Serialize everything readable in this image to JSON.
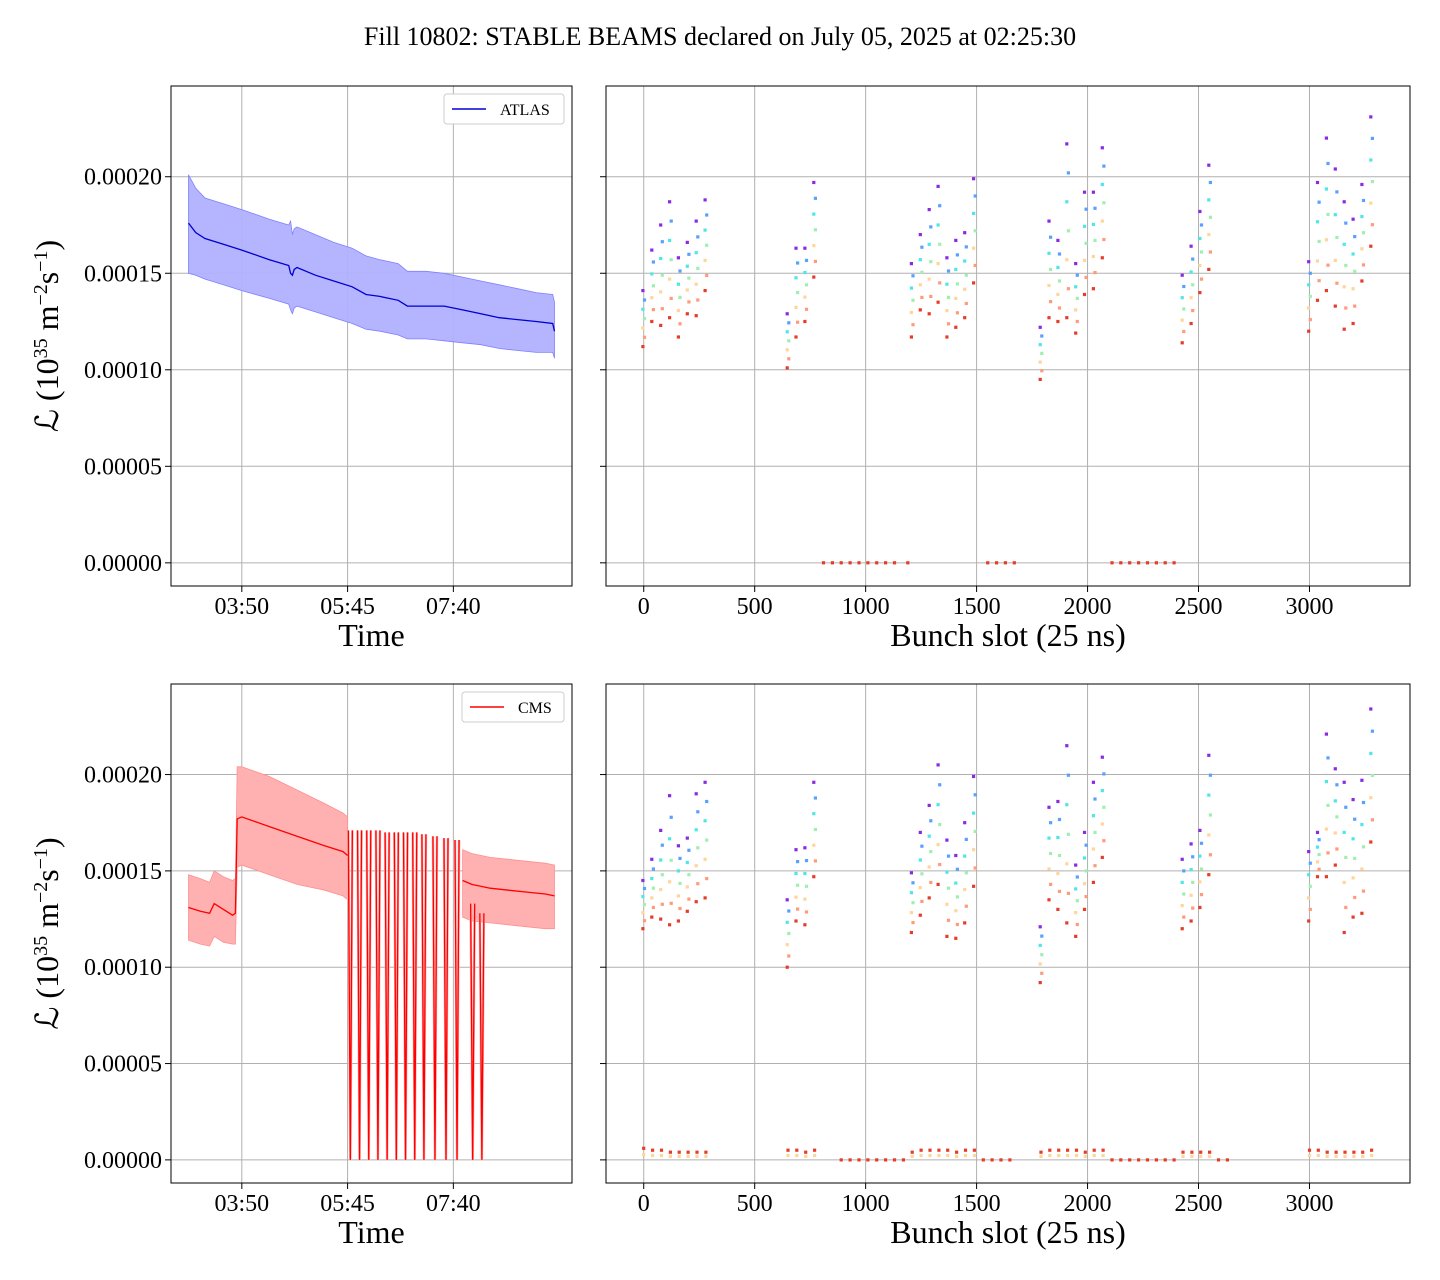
{
  "figure": {
    "title": "Fill 10802: STABLE BEAMS declared on July 05, 2025 at 02:25:30"
  },
  "colors": {
    "atlas_line": "#0000d0",
    "atlas_band": "#b0b0ff",
    "cms_line": "#ff0000",
    "cms_band": "#ffb0b0",
    "grid": "#b0b0b0",
    "axes": "#000000",
    "bunch_palette": [
      "#8a2be2",
      "#5aa0ff",
      "#4ee6e6",
      "#9ff0b0",
      "#ffd59a",
      "#ff9a7a",
      "#e63c2a"
    ]
  },
  "y_axis": {
    "label_main": "ℒ (10",
    "label_exp1": "35",
    "label_mid": " m",
    "label_exp2": "−2",
    "label_mid2": "s",
    "label_exp3": "−1",
    "label_end": ")",
    "ticks": [
      "0.00000",
      "0.00005",
      "0.00010",
      "0.00015",
      "0.00020"
    ],
    "tick_values": [
      0,
      5e-05,
      0.0001,
      0.00015,
      0.0002
    ],
    "ylim": [
      -1.2e-05,
      0.000247
    ]
  },
  "time_axis": {
    "label": "Time",
    "ticks": [
      "03:50",
      "05:45",
      "07:40"
    ],
    "tick_values": [
      230,
      345,
      460
    ],
    "xlim": [
      153,
      589
    ],
    "data_start": 172,
    "data_end": 570
  },
  "bunch_axis": {
    "label": "Bunch slot (25 ns)",
    "ticks": [
      "0",
      "500",
      "1000",
      "1500",
      "2000",
      "2500",
      "3000"
    ],
    "tick_values": [
      0,
      500,
      1000,
      1500,
      2000,
      2500,
      3000
    ],
    "xlim": [
      -170,
      3453
    ]
  },
  "chart_data": [
    {
      "type": "line",
      "panel": "atlas-time",
      "legend": "ATLAS",
      "legend_position": "top-right",
      "grid": true,
      "x_unit": "minutes",
      "series": [
        {
          "x": [
            172,
            180,
            190,
            210,
            230,
            260,
            281,
            283,
            285,
            287,
            290,
            310,
            330,
            350,
            365,
            380,
            400,
            410,
            430,
            450,
            470,
            490,
            510,
            530,
            550,
            568,
            570
          ],
          "y": [
            0.000176,
            0.000171,
            0.000168,
            0.000165,
            0.000162,
            0.000157,
            0.000154,
            0.00015,
            0.000149,
            0.000152,
            0.000153,
            0.000149,
            0.000146,
            0.000143,
            0.000139,
            0.000138,
            0.000136,
            0.000133,
            0.000133,
            0.000133,
            0.000131,
            0.000129,
            0.000127,
            0.000126,
            0.000125,
            0.000124,
            0.00012
          ],
          "band_upper": [
            0.000201,
            0.000194,
            0.000189,
            0.000186,
            0.000183,
            0.000178,
            0.000175,
            0.000177,
            0.00017,
            0.000173,
            0.000174,
            0.00017,
            0.000166,
            0.000163,
            0.000159,
            0.000157,
            0.000155,
            0.000151,
            0.000151,
            0.00015,
            0.000148,
            0.000146,
            0.000144,
            0.000142,
            0.00014,
            0.000139,
            0.000135
          ],
          "band_lower": [
            0.00015,
            0.000149,
            0.000147,
            0.000144,
            0.000141,
            0.000137,
            0.000134,
            0.000131,
            0.000129,
            0.000132,
            0.000133,
            0.00013,
            0.000127,
            0.000124,
            0.000121,
            0.00012,
            0.000118,
            0.000116,
            0.000116,
            0.000115,
            0.000114,
            0.000113,
            0.000111,
            0.00011,
            0.000109,
            0.000109,
            0.000106
          ]
        }
      ]
    },
    {
      "type": "scatter",
      "panel": "atlas-bunch",
      "grid": true,
      "trains": [
        0,
        40,
        80,
        120,
        160,
        200,
        240,
        280,
        650,
        690,
        730,
        770,
        1210,
        1250,
        1290,
        1330,
        1370,
        1410,
        1450,
        1490,
        1790,
        1830,
        1870,
        1910,
        1950,
        1990,
        2030,
        2070,
        2430,
        2470,
        2510,
        2550,
        3000,
        3040,
        3080,
        3120,
        3160,
        3200,
        3240,
        3280
      ],
      "train_top": [
        0.000141,
        0.000162,
        0.000175,
        0.000187,
        0.000158,
        0.000166,
        0.000177,
        0.000188,
        0.000129,
        0.000163,
        0.000163,
        0.000197,
        0.000155,
        0.00017,
        0.000183,
        0.000195,
        0.000158,
        0.000167,
        0.000171,
        0.000199,
        0.000122,
        0.000177,
        0.000167,
        0.000217,
        0.000155,
        0.000192,
        0.000192,
        0.000215,
        0.000149,
        0.000164,
        0.000182,
        0.000206,
        0.000156,
        0.000197,
        0.00022,
        0.000204,
        0.000187,
        0.000178,
        0.000196,
        0.000231
      ],
      "train_bottom": [
        0.000112,
        0.000125,
        0.000123,
        0.000127,
        0.000117,
        0.000129,
        0.000128,
        0.000141,
        0.000101,
        0.000117,
        0.000125,
        0.000148,
        0.000117,
        0.000131,
        0.000129,
        0.000135,
        0.000117,
        0.000122,
        0.000127,
        0.000145,
        9.5e-05,
        0.000127,
        0.000125,
        0.000127,
        0.000119,
        0.000139,
        0.000142,
        0.000158,
        0.000114,
        0.000124,
        0.00014,
        0.000152,
        0.00012,
        0.000136,
        0.000141,
        0.000133,
        0.000121,
        0.000124,
        0.000146,
        0.000164
      ],
      "zero_points": [
        810,
        850,
        890,
        930,
        970,
        1010,
        1050,
        1090,
        1130,
        1190,
        1550,
        1590,
        1630,
        1670,
        2110,
        2150,
        2190,
        2230,
        2270,
        2310,
        2350,
        2390
      ]
    },
    {
      "type": "line",
      "panel": "cms-time",
      "legend": "CMS",
      "legend_position": "top-right",
      "grid": true,
      "x_unit": "minutes",
      "series": [
        {
          "x": [
            172,
            185,
            195,
            200,
            210,
            220,
            223,
            225,
            230,
            260,
            290,
            320,
            340,
            345
          ],
          "y": [
            0.000131,
            0.000129,
            0.000128,
            0.000133,
            0.00013,
            0.000127,
            0.000128,
            0.000177,
            0.000178,
            0.000173,
            0.000168,
            0.000163,
            0.00016,
            0.000158
          ],
          "band_upper": [
            0.000148,
            0.000146,
            0.000144,
            0.00015,
            0.000147,
            0.000145,
            0.000146,
            0.000204,
            0.000204,
            0.000199,
            0.000192,
            0.000185,
            0.00018,
            0.000178
          ],
          "band_lower": [
            0.000114,
            0.000112,
            0.000111,
            0.000116,
            0.000113,
            0.000112,
            0.000112,
            0.000152,
            0.000153,
            0.000148,
            0.000143,
            0.00014,
            0.000137,
            0.000135
          ]
        },
        {
          "x": [
            470,
            480,
            500,
            520,
            540,
            560,
            570
          ],
          "y": [
            0.000145,
            0.000143,
            0.000141,
            0.00014,
            0.000139,
            0.000138,
            0.000137
          ],
          "band_upper": [
            0.000161,
            0.000159,
            0.000157,
            0.000156,
            0.000155,
            0.000154,
            0.000153
          ],
          "band_lower": [
            0.000126,
            0.000124,
            0.000123,
            0.000122,
            0.000121,
            0.00012,
            0.00012
          ]
        }
      ],
      "spikes": [
        348,
        358,
        368,
        378,
        388,
        398,
        408,
        418,
        428,
        440,
        452,
        464,
        481,
        491
      ],
      "spike_top": [
        0.000171,
        0.000171,
        0.000171,
        0.000171,
        0.00017,
        0.00017,
        0.00017,
        0.00017,
        0.000169,
        0.000168,
        0.000167,
        0.000166,
        0.000133,
        0.000128
      ]
    },
    {
      "type": "scatter",
      "panel": "cms-bunch",
      "grid": true,
      "trains": [
        0,
        40,
        80,
        120,
        160,
        200,
        240,
        280,
        650,
        690,
        730,
        770,
        1210,
        1250,
        1290,
        1330,
        1370,
        1410,
        1450,
        1490,
        1790,
        1830,
        1870,
        1910,
        1950,
        1990,
        2030,
        2070,
        2430,
        2470,
        2510,
        2550,
        3000,
        3040,
        3080,
        3120,
        3160,
        3200,
        3240,
        3280
      ],
      "train_top": [
        0.000145,
        0.000156,
        0.000171,
        0.000189,
        0.000163,
        0.000167,
        0.00019,
        0.000196,
        0.000135,
        0.000161,
        0.000162,
        0.000196,
        0.000149,
        0.00017,
        0.000184,
        0.000205,
        0.000166,
        0.000158,
        0.000175,
        0.000199,
        0.000121,
        0.000183,
        0.000186,
        0.000215,
        0.000153,
        0.00017,
        0.000196,
        0.000209,
        0.000156,
        0.000164,
        0.000171,
        0.00021,
        0.00016,
        0.00017,
        0.000221,
        0.000203,
        0.000196,
        0.000187,
        0.000197,
        0.000234
      ],
      "train_bottom": [
        0.00012,
        0.000126,
        0.000125,
        0.000122,
        0.000124,
        0.000129,
        0.000134,
        0.000136,
        0.0001,
        0.000124,
        0.000122,
        0.000147,
        0.000118,
        0.000127,
        0.000136,
        0.000143,
        0.000116,
        0.000115,
        0.000123,
        0.000142,
        9.2e-05,
        0.000135,
        0.00013,
        0.000123,
        0.000116,
        0.00013,
        0.000144,
        0.000157,
        0.00012,
        0.000124,
        0.000131,
        0.000148,
        0.000124,
        0.000147,
        0.000147,
        0.000153,
        0.000118,
        0.000126,
        0.000128,
        0.000165
      ],
      "zero_points": [
        890,
        930,
        970,
        1010,
        1050,
        1090,
        1130,
        1170,
        1530,
        1570,
        1610,
        1650,
        2110,
        2150,
        2190,
        2230,
        2270,
        2310,
        2350,
        2390,
        2590,
        2630
      ],
      "low_points": [
        0,
        40,
        80,
        120,
        160,
        200,
        240,
        280,
        650,
        690,
        730,
        770,
        1210,
        1250,
        1290,
        1330,
        1370,
        1410,
        1450,
        1490,
        1790,
        1830,
        1870,
        1910,
        1950,
        1990,
        2030,
        2070,
        2430,
        2470,
        2510,
        2550,
        3000,
        3040,
        3080,
        3120,
        3160,
        3200,
        3240,
        3280
      ],
      "low_values": [
        6e-06,
        5e-06,
        5e-06,
        4e-06,
        4e-06,
        4e-06,
        4e-06,
        4e-06,
        5e-06,
        5e-06,
        4e-06,
        5e-06,
        4e-06,
        5e-06,
        5e-06,
        5e-06,
        5e-06,
        4e-06,
        5e-06,
        5e-06,
        4e-06,
        5e-06,
        5e-06,
        5e-06,
        5e-06,
        4e-06,
        5e-06,
        5e-06,
        4e-06,
        4e-06,
        4e-06,
        4e-06,
        5e-06,
        5e-06,
        4e-06,
        4e-06,
        4e-06,
        4e-06,
        4e-06,
        5e-06
      ]
    }
  ]
}
